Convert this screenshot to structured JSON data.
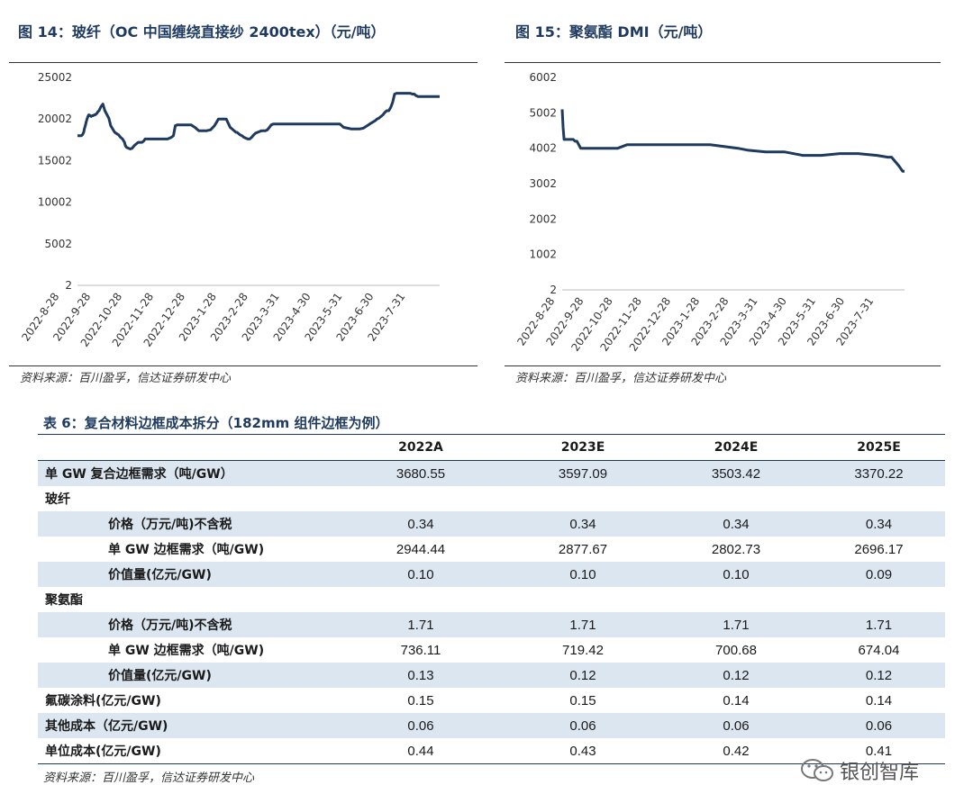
{
  "fig14": {
    "title": "图 14：玻纤（OC 中国缠绕直接纱 2400tex）（元/吨）",
    "source": "资料来源：百川盈孚，信达证券研发中心"
  },
  "fig15": {
    "title": "图 15：聚氨酯 DMI（元/吨）",
    "source": "资料来源：百川盈孚，信达证券研发中心"
  },
  "chart_data": [
    {
      "type": "line",
      "title": "图 14：玻纤（OC 中国缠绕直接纱 2400tex）（元/吨）",
      "y_ticks": [
        "25002",
        "20002",
        "15002",
        "10002",
        "5002",
        "2"
      ],
      "ylim": [
        2,
        25002
      ],
      "x_ticks": [
        "2022-8-28",
        "2022-9-28",
        "2022-10-28",
        "2022-11-28",
        "2022-12-28",
        "2023-1-28",
        "2023-2-28",
        "2023-3-31",
        "2023-4-30",
        "2023-5-31",
        "2023-6-30",
        "2023-7-31"
      ],
      "grid": false,
      "color": "#1f3a5f",
      "x": [
        0,
        3,
        4,
        5,
        6,
        6.5,
        7,
        8,
        9,
        10,
        11,
        11.5,
        12,
        13,
        14,
        15,
        16,
        17,
        18,
        19,
        20,
        21,
        22,
        24,
        26,
        28,
        32,
        34,
        38,
        42,
        44,
        46,
        48,
        49,
        50,
        52,
        54,
        56,
        58,
        60,
        62,
        64,
        66,
        68,
        69,
        70,
        72,
        74,
        76,
        78,
        80,
        82,
        84,
        86,
        88,
        90,
        92,
        94,
        96,
        98,
        100,
        102,
        104,
        106,
        110,
        116,
        120,
        124,
        128,
        132,
        136,
        140,
        144,
        148,
        150,
        152,
        154,
        156,
        158,
        160,
        162,
        163,
        164,
        166,
        168,
        170,
        172,
        174,
        176,
        178,
        180,
        182,
        186,
        188,
        190,
        192,
        194,
        196,
        198,
        200,
        202,
        204,
        206,
        208,
        210,
        212,
        214,
        216,
        218,
        220,
        222,
        224,
        226,
        228,
        230,
        232,
        234,
        236,
        240,
        244,
        248,
        252,
        256,
        260,
        264,
        268,
        272,
        276,
        280,
        284,
        288,
        292,
        296,
        300,
        304,
        306,
        308,
        310,
        312,
        314,
        316,
        318,
        320,
        322,
        324,
        326,
        328,
        330,
        332,
        334,
        336,
        338,
        340,
        342,
        344,
        346,
        348,
        350,
        352,
        354,
        356,
        358,
        360,
        362,
        364,
        366,
        368,
        370
      ],
      "values": [
        18000,
        18000,
        18000,
        18100,
        18300,
        18500,
        18800,
        19200,
        19700,
        20100,
        20400,
        20500,
        20500,
        20400,
        20300,
        20400,
        20400,
        20500,
        20500,
        20600,
        20700,
        20900,
        21000,
        21500,
        21800,
        21000,
        20100,
        19200,
        18400,
        18100,
        17800,
        17600,
        17200,
        16800,
        16600,
        16500,
        16400,
        16500,
        16800,
        17000,
        17200,
        17200,
        17200,
        17400,
        17600,
        17600,
        17600,
        17600,
        17600,
        17600,
        17600,
        17600,
        17600,
        17600,
        17600,
        17600,
        17600,
        17700,
        17800,
        18000,
        19200,
        19300,
        19300,
        19300,
        19300,
        19300,
        19000,
        18600,
        18600,
        18600,
        18700,
        19200,
        20000,
        20000,
        20000,
        20000,
        19500,
        19000,
        18800,
        18600,
        18400,
        18400,
        18300,
        18100,
        18000,
        17800,
        17700,
        17600,
        17600,
        17800,
        18100,
        18300,
        18500,
        18600,
        18600,
        18600,
        18700,
        19000,
        19300,
        19400,
        19400,
        19400,
        19400,
        19400,
        19400,
        19400,
        19400,
        19400,
        19400,
        19400,
        19400,
        19400,
        19400,
        19400,
        19400,
        19400,
        19400,
        19400,
        19400,
        19400,
        19400,
        19400,
        19400,
        19400,
        19400,
        19400,
        19000,
        18900,
        18800,
        18800,
        18800,
        18900,
        19200,
        19500,
        19800,
        20000,
        20100,
        20300,
        20500,
        20800,
        21000,
        21000,
        21400,
        22000,
        23000,
        23100,
        23100,
        23100,
        23100,
        23100,
        23100,
        23100,
        23100,
        23000,
        23000,
        22800,
        22700,
        22700,
        22700,
        22700,
        22700,
        22700,
        22700,
        22700,
        22700,
        22700,
        22700,
        22700
      ],
      "xlim": [
        0,
        370
      ]
    },
    {
      "type": "line",
      "title": "图 15：聚氨酯 DMI（元/吨）",
      "y_ticks": [
        "6002",
        "5002",
        "4002",
        "3002",
        "2002",
        "1002",
        "2"
      ],
      "ylim": [
        2,
        6002
      ],
      "x_ticks": [
        "2022-8-28",
        "2022-9-28",
        "2022-10-28",
        "2022-11-28",
        "2022-12-28",
        "2023-1-28",
        "2023-2-28",
        "2023-3-31",
        "2023-4-30",
        "2023-5-31",
        "2023-6-30",
        "2023-7-31"
      ],
      "grid": false,
      "color": "#1f3a5f",
      "x": [
        0,
        1,
        2,
        4,
        8,
        12,
        14,
        16,
        20,
        24,
        28,
        32,
        40,
        60,
        70,
        90,
        110,
        130,
        160,
        190,
        200,
        220,
        240,
        260,
        280,
        300,
        320,
        340,
        352,
        356,
        364,
        368,
        370
      ],
      "values": [
        5100,
        4600,
        4250,
        4250,
        4250,
        4250,
        4200,
        4200,
        4000,
        4000,
        4000,
        4000,
        4000,
        4000,
        4100,
        4100,
        4100,
        4100,
        4100,
        4000,
        3950,
        3900,
        3900,
        3800,
        3800,
        3850,
        3850,
        3800,
        3750,
        3750,
        3500,
        3350,
        3350
      ],
      "xlim": [
        0,
        370
      ]
    }
  ],
  "table": {
    "title": "表 6：复合材料边框成本拆分（182mm 组件边框为例）",
    "headers": [
      "",
      "2022A",
      "2023E",
      "2024E",
      "2025E"
    ],
    "rows": [
      {
        "label": "单 GW 复合边框需求（吨/GW）",
        "indent": false,
        "values": [
          "3680.55",
          "3597.09",
          "3503.42",
          "3370.22"
        ]
      },
      {
        "label": "玻纤",
        "indent": false,
        "values": [
          "",
          "",
          "",
          ""
        ]
      },
      {
        "label": "价格（万元/吨)不含税",
        "indent": true,
        "values": [
          "0.34",
          "0.34",
          "0.34",
          "0.34"
        ]
      },
      {
        "label": "单 GW 边框需求（吨/GW)",
        "indent": true,
        "values": [
          "2944.44",
          "2877.67",
          "2802.73",
          "2696.17"
        ]
      },
      {
        "label": "价值量(亿元/GW)",
        "indent": true,
        "values": [
          "0.10",
          "0.10",
          "0.10",
          "0.09"
        ]
      },
      {
        "label": "聚氨酯",
        "indent": false,
        "values": [
          "",
          "",
          "",
          ""
        ]
      },
      {
        "label": "价格（万元/吨)不含税",
        "indent": true,
        "values": [
          "1.71",
          "1.71",
          "1.71",
          "1.71"
        ]
      },
      {
        "label": "单 GW 边框需求（吨/GW)",
        "indent": true,
        "values": [
          "736.11",
          "719.42",
          "700.68",
          "674.04"
        ]
      },
      {
        "label": "价值量(亿元/GW)",
        "indent": true,
        "values": [
          "0.13",
          "0.12",
          "0.12",
          "0.12"
        ]
      },
      {
        "label": "氟碳涂料(亿元/GW)",
        "indent": false,
        "values": [
          "0.15",
          "0.15",
          "0.14",
          "0.14"
        ]
      },
      {
        "label": "其他成本（亿元/GW)",
        "indent": false,
        "values": [
          "0.06",
          "0.06",
          "0.06",
          "0.06"
        ]
      },
      {
        "label": "单位成本(亿元/GW)",
        "indent": false,
        "values": [
          "0.44",
          "0.43",
          "0.42",
          "0.41"
        ]
      }
    ],
    "source": "资料来源：百川盈孚，信达证券研发中心"
  },
  "watermark": {
    "text": "银创智库",
    "icon": "wechat-icon"
  },
  "colors": {
    "accent": "#1f3a5f",
    "row_band": "#dce6f1"
  }
}
